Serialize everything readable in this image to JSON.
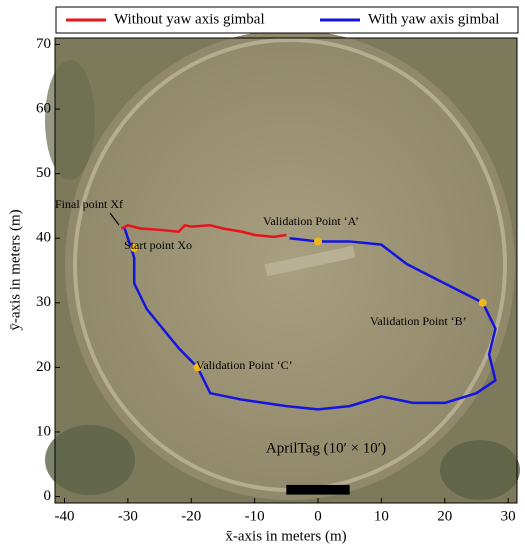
{
  "chart_data": {
    "type": "line",
    "xlabel": "x̄-axis in meters (m)",
    "ylabel": "ȳ-axis in meters (m)",
    "xlim": [
      -41.5,
      31.4
    ],
    "ylim": [
      -1,
      71
    ],
    "xticks": [
      -40,
      -30,
      -20,
      -10,
      0,
      10,
      20,
      30
    ],
    "yticks": [
      0,
      10,
      20,
      30,
      40,
      50,
      60,
      70
    ],
    "legend": "top",
    "series": [
      {
        "name": "Without yaw axis gimbal",
        "color": "#e8121b",
        "x": [
          -31,
          -30,
          -28,
          -25,
          -22,
          -21,
          -20,
          -17,
          -15,
          -12,
          -10,
          -7,
          -5
        ],
        "values": [
          41.5,
          42,
          41.5,
          41.3,
          41,
          42,
          41.8,
          42,
          41.5,
          41,
          40.5,
          40.2,
          40.5
        ]
      },
      {
        "name": "With yaw axis gimbal",
        "color": "#1414e0",
        "x": [
          -4.5,
          0,
          5,
          10,
          14,
          18,
          22,
          26,
          28,
          27,
          28,
          25,
          20,
          15,
          10,
          5,
          0,
          -5,
          -12,
          -17,
          -19,
          -22,
          -27,
          -29,
          -29,
          -30,
          -30.5
        ],
        "values": [
          40,
          39.5,
          39.5,
          39,
          36,
          34,
          32,
          30,
          26,
          22,
          18,
          16,
          14.5,
          14.5,
          15.5,
          14,
          13.5,
          14,
          15,
          16,
          20,
          23,
          29,
          33,
          37,
          40,
          41.5
        ]
      }
    ],
    "highlight_points": {
      "x": [
        0,
        26,
        -19,
        -29
      ],
      "y": [
        39.5,
        30,
        20,
        38.5
      ],
      "color": "#f2b818"
    },
    "annotations": [
      "Final point Xf",
      "Start point Xo",
      "Validation Point ‘A’",
      "Validation Point ‘B’",
      "Validation Point ‘C’",
      "AprilTag (10′ × 10′)"
    ]
  }
}
